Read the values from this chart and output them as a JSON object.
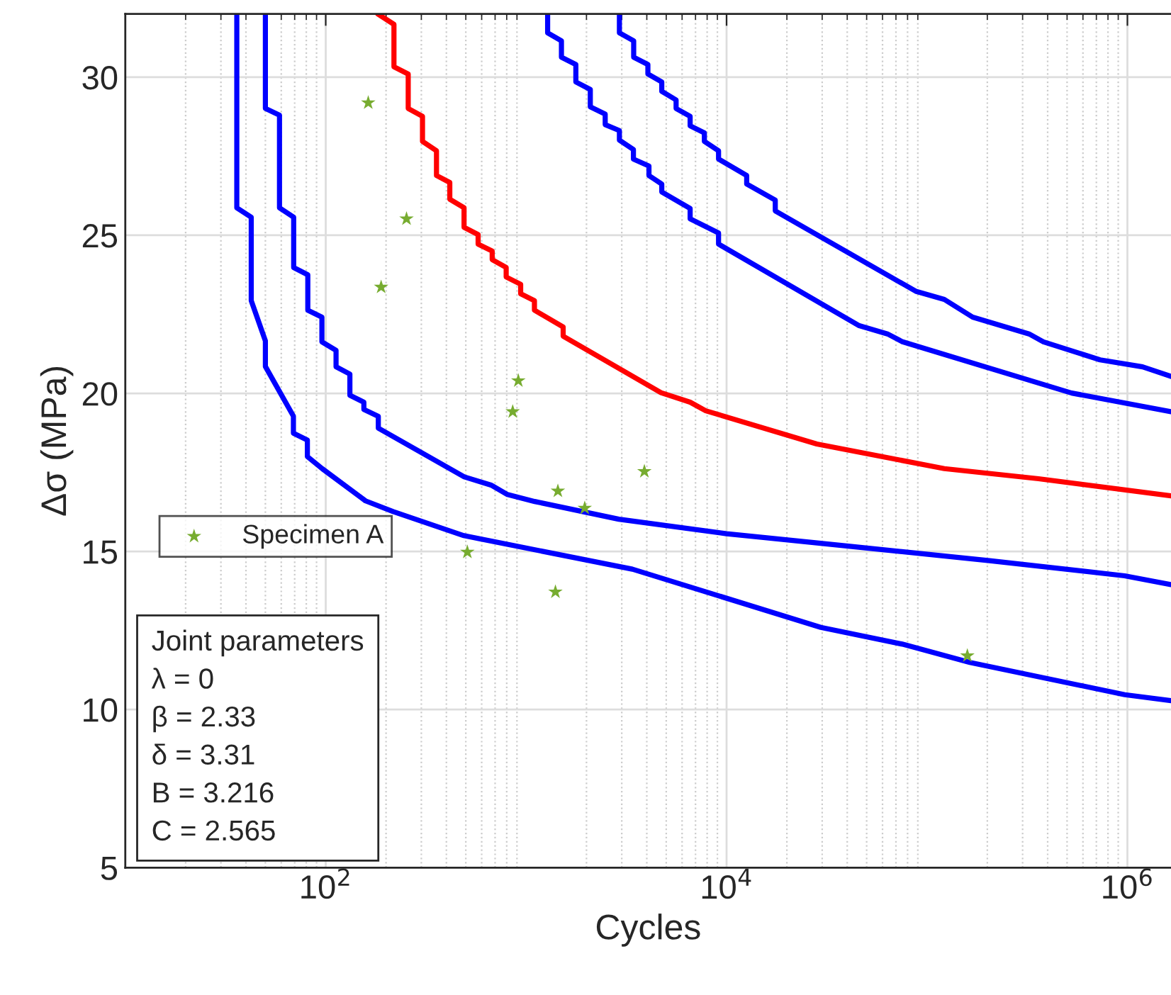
{
  "chart_data": {
    "type": "line",
    "xlabel": "Cycles",
    "ylabel": "Δσ (MPa)",
    "log": "x",
    "grid": true,
    "legend": "left",
    "line_style": "solid",
    "marker": "none",
    "xlim": [
      10,
      1650000
    ],
    "ylim": [
      5,
      32
    ],
    "xticks": [
      {
        "value": 100,
        "label": "10$^{2}$"
      },
      {
        "value": 10000,
        "label": "10$^{4}$"
      },
      {
        "value": 1000000,
        "label": "10$^{6}$"
      }
    ],
    "yticks": [
      5,
      10,
      15,
      20,
      25,
      30
    ],
    "series": [
      {
        "color": "#0000ff",
        "x": [
          36,
          36,
          42.5,
          42.5,
          50,
          50,
          69,
          69,
          81,
          81,
          96,
          158,
          217,
          489,
          3390,
          29500,
          75200,
          163700,
          970000,
          1650000
        ],
        "values": [
          32,
          25.87,
          25.57,
          22.93,
          21.66,
          20.85,
          19.28,
          18.74,
          18.52,
          18.0,
          17.62,
          16.6,
          16.26,
          15.5,
          14.44,
          12.6,
          12.07,
          11.49,
          10.47,
          10.28
        ]
      },
      {
        "color": "#0000ff",
        "x": [
          50,
          50,
          58.8,
          58.8,
          69.2,
          69.2,
          81.4,
          81.4,
          95.7,
          95.7,
          112.6,
          112.6,
          132,
          132,
          155,
          155,
          183,
          183,
          491,
          668,
          807,
          1104,
          2900,
          10000,
          40500,
          205000,
          968000,
          1650000
        ],
        "values": [
          32,
          29.01,
          28.8,
          25.87,
          25.57,
          23.98,
          23.75,
          22.63,
          22.41,
          21.63,
          21.36,
          20.84,
          20.61,
          19.94,
          19.72,
          19.49,
          19.27,
          18.9,
          17.36,
          17.1,
          16.8,
          16.58,
          16.02,
          15.56,
          15.17,
          14.71,
          14.23,
          13.95
        ]
      },
      {
        "color": "#ff0000",
        "x": [
          182,
          219,
          219,
          258,
          258,
          304,
          304,
          357,
          357,
          416,
          416,
          490,
          490,
          576,
          576,
          677,
          677,
          795,
          795,
          939,
          939,
          1100,
          1100,
          1530,
          1530,
          4710,
          6580,
          7870,
          28200,
          122000,
          360000,
          1650000
        ],
        "values": [
          32,
          31.67,
          30.33,
          30.1,
          29.01,
          28.76,
          27.97,
          27.67,
          26.89,
          26.67,
          26.14,
          25.87,
          25.25,
          25.02,
          24.72,
          24.5,
          24.23,
          23.98,
          23.68,
          23.45,
          23.15,
          22.93,
          22.63,
          22.1,
          21.81,
          20.02,
          19.72,
          19.45,
          18.4,
          17.62,
          17.3,
          16.76
        ]
      },
      {
        "color": "#0000ff",
        "x": [
          1280,
          1280,
          1500,
          1500,
          1770,
          1770,
          2090,
          2090,
          2480,
          2480,
          2920,
          2920,
          3430,
          3430,
          4100,
          4100,
          4750,
          4750,
          6580,
          6580,
          9120,
          9120,
          45900,
          63500,
          75500,
          527000,
          1650000
        ],
        "values": [
          32,
          31.4,
          31.15,
          30.63,
          30.4,
          29.85,
          29.61,
          29.06,
          28.83,
          28.5,
          28.31,
          28.01,
          27.71,
          27.41,
          27.19,
          26.89,
          26.62,
          26.37,
          25.85,
          25.52,
          25.07,
          24.72,
          22.14,
          21.88,
          21.63,
          20.01,
          19.42
        ]
      },
      {
        "color": "#0000ff",
        "x": [
          2920,
          2920,
          3440,
          3440,
          4050,
          4050,
          4750,
          4750,
          5600,
          5600,
          6580,
          6580,
          7750,
          7750,
          9120,
          9120,
          12600,
          12600,
          17500,
          17500,
          87900,
          122000,
          169000,
          323000,
          381000,
          730000,
          1190000,
          1650000
        ],
        "values": [
          32,
          31.4,
          31.15,
          30.63,
          30.4,
          30.1,
          29.85,
          29.55,
          29.28,
          29.01,
          28.76,
          28.46,
          28.24,
          27.97,
          27.67,
          27.41,
          26.89,
          26.62,
          26.11,
          25.77,
          23.23,
          22.97,
          22.41,
          21.88,
          21.63,
          21.06,
          20.84,
          20.54
        ]
      },
      {
        "type": "scatter",
        "name": "Specimen A",
        "color": "#77ac30",
        "marker": "star",
        "x": [
          163,
          253,
          189,
          914,
          857,
          1440,
          1960,
          3890,
          509,
          1400,
          159000
        ],
        "values": [
          29.19,
          25.52,
          23.36,
          20.4,
          19.42,
          16.91,
          16.37,
          17.53,
          14.98,
          13.72,
          11.7
        ]
      }
    ],
    "annotations": [
      "Joint parameters\nλ = 0\nβ = 2.33\nδ = 3.31\nB = 3.216\nC = 2.565"
    ]
  }
}
